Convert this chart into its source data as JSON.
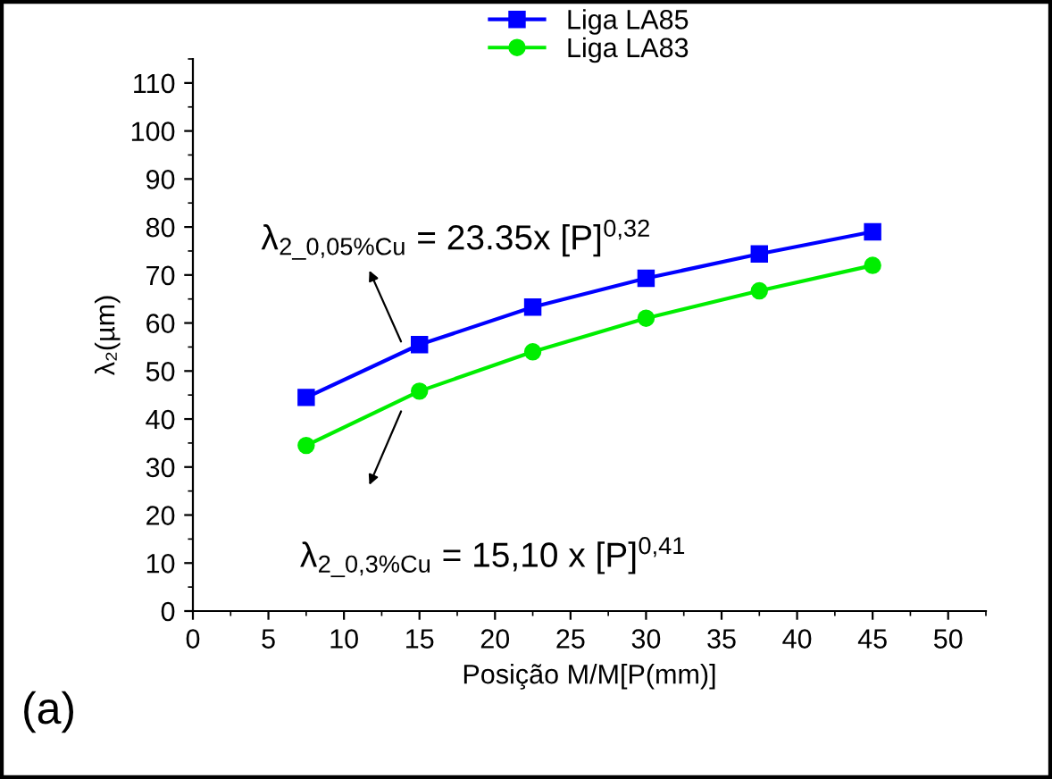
{
  "chart_data": {
    "type": "line",
    "xlabel": "Posição M/M[P(mm)]",
    "ylabel": "λ₂(µm)",
    "x": [
      7.5,
      15,
      22.5,
      30,
      37.5,
      45
    ],
    "series": [
      {
        "name": "Liga LA85",
        "color": "#0000ff",
        "marker": "square",
        "values": [
          44.5,
          55.5,
          63.3,
          69.3,
          74.4,
          79
        ]
      },
      {
        "name": "Liga LA83",
        "color": "#00ee00",
        "marker": "circle",
        "values": [
          34.5,
          45.8,
          54,
          61,
          66.7,
          72
        ]
      }
    ],
    "xlim": [
      0,
      52.5
    ],
    "xticks": [
      0,
      5,
      10,
      15,
      20,
      25,
      30,
      35,
      40,
      45,
      50
    ],
    "ylim": [
      0,
      115
    ],
    "yticks": [
      0,
      10,
      20,
      30,
      40,
      50,
      60,
      70,
      80,
      90,
      100,
      110
    ],
    "legend": "top",
    "grid": false,
    "line_style": "solid",
    "annotations": [
      "λ$_{2_0,05%Cu}$ = 23.35x [P]$^{0,32}$",
      "λ$_{2_0,3%Cu}$ = 15,10 x [P]$^{0,41}$",
      "(a)"
    ]
  }
}
